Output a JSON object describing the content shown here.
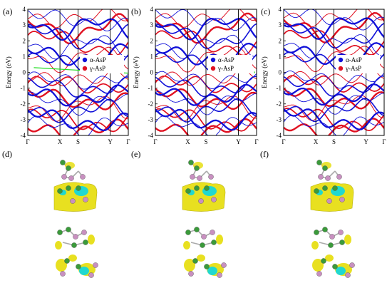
{
  "figure": {
    "colors": {
      "alpha": "#1010d8",
      "gamma": "#e01020",
      "gap_line": "#22dd22",
      "iso_yellow": "#e8e020",
      "iso_cyan": "#20d8d0",
      "atom_green": "#3a9a3a",
      "atom_pink": "#c890c0"
    },
    "panels": [
      {
        "label": "(a)"
      },
      {
        "label": "(b)"
      },
      {
        "label": "(c)"
      },
      {
        "label": "(d)"
      },
      {
        "label": "(e)"
      },
      {
        "label": "(f)"
      }
    ]
  },
  "chart_data": [
    {
      "type": "line",
      "panel": "(a)",
      "ylabel": "Energy (eV)",
      "ylim": [
        -4,
        4
      ],
      "yticks": [
        "-4",
        "-3",
        "-2",
        "-1",
        "0",
        "1",
        "2",
        "3",
        "4"
      ],
      "kpoints": [
        "Γ",
        "X",
        "S",
        "Y",
        "Γ"
      ],
      "kpos": [
        0,
        0.32,
        0.5,
        0.82,
        1.0
      ],
      "legend": [
        "α-AsP",
        "γ-AsP"
      ],
      "legend_position": "right",
      "gap_arrow": {
        "from": [
          0.06,
          0.3
        ],
        "to": [
          1.0,
          -0.05
        ]
      }
    },
    {
      "type": "line",
      "panel": "(b)",
      "ylabel": "Energy (eV)",
      "ylim": [
        -4,
        4
      ],
      "yticks": [
        "-4",
        "-3",
        "-2",
        "-1",
        "0",
        "1",
        "2",
        "3",
        "4"
      ],
      "kpoints": [
        "Γ",
        "X",
        "S",
        "Y",
        "Γ"
      ],
      "kpos": [
        0,
        0.32,
        0.5,
        0.82,
        1.0
      ],
      "legend": [
        "α-AsP",
        "γ-AsP"
      ],
      "legend_position": "right",
      "gap_arrow": {
        "from": [
          0.98,
          -0.05
        ],
        "to": [
          0.98,
          0.05
        ]
      }
    },
    {
      "type": "line",
      "panel": "(c)",
      "ylabel": "Energy (eV)",
      "ylim": [
        -4,
        4
      ],
      "yticks": [
        "-4",
        "-3",
        "-2",
        "-1",
        "0",
        "1",
        "2",
        "3",
        "4"
      ],
      "kpoints": [
        "Γ",
        "X",
        "S",
        "Y",
        "Γ"
      ],
      "kpos": [
        0,
        0.32,
        0.5,
        0.82,
        1.0
      ],
      "legend": [
        "α-AsP",
        "γ-AsP"
      ],
      "legend_position": "right",
      "gap_arrow": null
    }
  ]
}
